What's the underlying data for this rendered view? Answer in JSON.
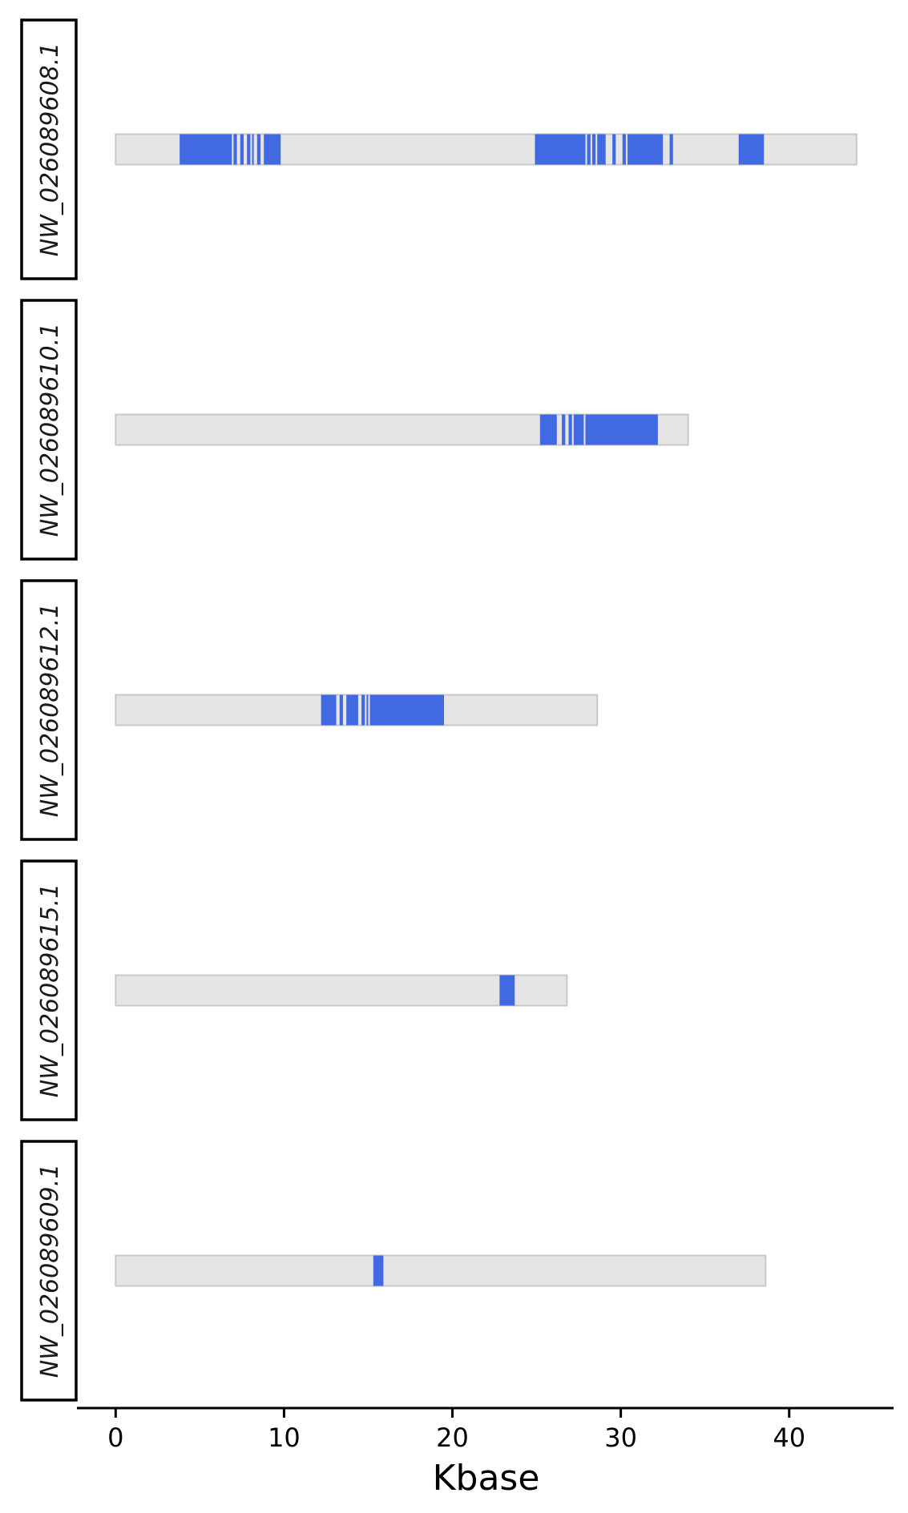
{
  "chart_data": {
    "type": "bar",
    "subtype": "horizontal-range-track",
    "xlabel": "Kbase",
    "xlim": [
      -2.3,
      46.2
    ],
    "xticks": [
      0,
      10,
      20,
      30,
      40
    ],
    "track_color": "#e5e5e5",
    "track_border_color": "#c8c8c8",
    "feature_color": "#4169e1",
    "facets": [
      {
        "label": "NW_026089608.1",
        "length": 44.0,
        "features": [
          [
            3.8,
            6.9
          ],
          [
            7.0,
            7.2
          ],
          [
            7.4,
            7.6
          ],
          [
            7.8,
            8.0
          ],
          [
            8.1,
            8.2
          ],
          [
            8.4,
            8.6
          ],
          [
            8.8,
            9.8
          ],
          [
            24.9,
            27.9
          ],
          [
            28.0,
            28.2
          ],
          [
            28.3,
            28.5
          ],
          [
            28.6,
            29.1
          ],
          [
            29.5,
            29.7
          ],
          [
            30.1,
            30.3
          ],
          [
            30.4,
            32.5
          ],
          [
            32.9,
            33.1
          ],
          [
            37.0,
            38.5
          ]
        ]
      },
      {
        "label": "NW_026089610.1",
        "length": 34.0,
        "features": [
          [
            25.2,
            26.2
          ],
          [
            26.5,
            26.7
          ],
          [
            26.9,
            27.1
          ],
          [
            27.2,
            27.8
          ],
          [
            27.9,
            32.2
          ]
        ]
      },
      {
        "label": "NW_026089612.1",
        "length": 28.6,
        "features": [
          [
            12.2,
            13.1
          ],
          [
            13.3,
            13.5
          ],
          [
            13.7,
            14.4
          ],
          [
            14.6,
            14.8
          ],
          [
            14.9,
            15.0
          ],
          [
            15.1,
            19.5
          ]
        ]
      },
      {
        "label": "NW_026089615.1",
        "length": 26.8,
        "features": [
          [
            22.8,
            23.7
          ]
        ]
      },
      {
        "label": "NW_026089609.1",
        "length": 38.6,
        "features": [
          [
            15.3,
            15.9
          ]
        ]
      }
    ]
  }
}
